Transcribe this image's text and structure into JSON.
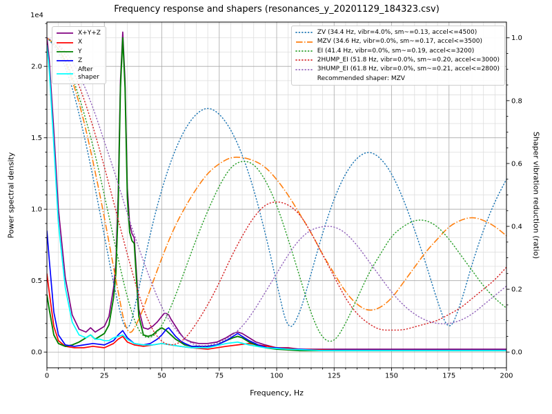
{
  "title": "Frequency response and shapers (resonances_y_20201129_184323.csv)",
  "axes": {
    "x": {
      "label": "Frequency, Hz",
      "range": [
        0,
        200
      ],
      "major_ticks": [
        0,
        25,
        50,
        75,
        100,
        125,
        150,
        175,
        200
      ],
      "minor_step": 5
    },
    "y_left": {
      "label": "Power spectral density",
      "offset_text": "1e4",
      "range_1e4": [
        -0.11,
        2.31
      ],
      "major_ticks": [
        0,
        0.5,
        1.0,
        1.5,
        2.0
      ],
      "minor_step": 0.1
    },
    "y_right": {
      "label": "Shaper vibration reduction (ratio)",
      "range": [
        -0.05,
        1.05
      ],
      "major_ticks": [
        0,
        0.2,
        0.4,
        0.6,
        0.8,
        1.0
      ],
      "minor_step": 0.05
    }
  },
  "legend_psd": {
    "items": [
      {
        "label": "X+Y+Z",
        "color": "#800080",
        "linestyle": "solid"
      },
      {
        "label": "X",
        "color": "#ff0000",
        "linestyle": "solid"
      },
      {
        "label": "Y",
        "color": "#008000",
        "linestyle": "solid"
      },
      {
        "label": "Z",
        "color": "#0000ff",
        "linestyle": "solid"
      },
      {
        "label": "After\nshaper",
        "color": "#00ffff",
        "linestyle": "solid"
      }
    ]
  },
  "legend_shapers": {
    "items": [
      {
        "label": "ZV (34.4 Hz, vibr=4.0%, sm~=0.13, accel<=4500)",
        "color": "#1f77b4",
        "linestyle": "dotted"
      },
      {
        "label": "MZV (34.6 Hz, vibr=0.0%, sm~=0.17, accel<=3500)",
        "color": "#ff7f0e",
        "linestyle": "dashdot"
      },
      {
        "label": "EI (41.4 Hz, vibr=0.0%, sm~=0.19, accel<=3200)",
        "color": "#2ca02c",
        "linestyle": "dotted"
      },
      {
        "label": "2HUMP_EI (51.8 Hz, vibr=0.0%, sm~=0.20, accel<=3000)",
        "color": "#d62728",
        "linestyle": "dotted"
      },
      {
        "label": "3HUMP_EI (61.8 Hz, vibr=0.0%, sm~=0.21, accel<=2800)",
        "color": "#9467bd",
        "linestyle": "dotted"
      }
    ],
    "note": "Recommended shaper: MZV"
  },
  "chart_data": {
    "type": "line",
    "title": "Frequency response and shapers (resonances_y_20201129_184323.csv)",
    "xlabel": "Frequency, Hz",
    "ylabel_left": "Power spectral density",
    "ylabel_right": "Shaper vibration reduction (ratio)",
    "x_range": [
      0,
      200
    ],
    "y_left_units": "1e4 power spectral density",
    "y_left_range_1e4": [
      0,
      2.3
    ],
    "y_right_range": [
      0,
      1.0
    ],
    "grid": "major grey + minor lightgrey, both axes",
    "legend_positions": [
      "upper left",
      "upper right"
    ],
    "recommended_shaper": "MZV",
    "series": [
      {
        "name": "X+Y+Z",
        "axis": "left",
        "color": "#800080",
        "linestyle": "solid",
        "width": 1.7,
        "x": [
          0,
          1,
          3,
          5,
          8,
          11,
          14,
          17,
          19,
          21,
          23,
          25,
          27,
          29,
          30,
          31,
          32,
          33,
          34,
          35,
          36,
          37,
          38,
          39,
          40,
          42,
          44,
          46,
          48,
          50,
          51,
          52,
          53,
          54,
          56,
          58,
          60,
          63,
          66,
          70,
          74,
          78,
          81,
          83,
          85,
          88,
          91,
          95,
          100,
          105,
          110,
          120,
          140,
          170,
          200
        ],
        "y": [
          2.2,
          2.05,
          1.55,
          1.0,
          0.52,
          0.26,
          0.16,
          0.14,
          0.17,
          0.14,
          0.16,
          0.18,
          0.25,
          0.45,
          0.62,
          1.1,
          1.9,
          2.24,
          1.9,
          1.15,
          0.9,
          0.83,
          0.8,
          0.55,
          0.3,
          0.17,
          0.16,
          0.18,
          0.21,
          0.25,
          0.27,
          0.27,
          0.26,
          0.23,
          0.18,
          0.13,
          0.09,
          0.07,
          0.06,
          0.06,
          0.07,
          0.1,
          0.13,
          0.14,
          0.13,
          0.1,
          0.07,
          0.05,
          0.03,
          0.03,
          0.02,
          0.02,
          0.02,
          0.02,
          0.02
        ]
      },
      {
        "name": "X",
        "axis": "left",
        "color": "#ff0000",
        "linestyle": "solid",
        "width": 1.7,
        "x": [
          0,
          1,
          3,
          5,
          8,
          12,
          16,
          20,
          25,
          29,
          31,
          33,
          35,
          38,
          42,
          46,
          50,
          54,
          58,
          63,
          70,
          78,
          83,
          88,
          92,
          96,
          100,
          110,
          130,
          160,
          200
        ],
        "y": [
          0.55,
          0.42,
          0.18,
          0.08,
          0.04,
          0.03,
          0.03,
          0.04,
          0.03,
          0.06,
          0.09,
          0.11,
          0.07,
          0.05,
          0.04,
          0.05,
          0.06,
          0.05,
          0.04,
          0.03,
          0.02,
          0.04,
          0.05,
          0.06,
          0.05,
          0.04,
          0.03,
          0.02,
          0.01,
          0.01,
          0.01
        ]
      },
      {
        "name": "Y",
        "axis": "left",
        "color": "#008000",
        "linestyle": "solid",
        "width": 1.9,
        "x": [
          0,
          1,
          3,
          5,
          8,
          11,
          14,
          17,
          19,
          21,
          23,
          25,
          27,
          29,
          30,
          31,
          32,
          33,
          34,
          35,
          36,
          37,
          38,
          39,
          40,
          42,
          44,
          46,
          48,
          50,
          52,
          54,
          56,
          58,
          60,
          63,
          66,
          70,
          74,
          78,
          81,
          83,
          85,
          88,
          91,
          95,
          100,
          110,
          120,
          140,
          170,
          200
        ],
        "y": [
          0.4,
          0.3,
          0.12,
          0.06,
          0.04,
          0.05,
          0.07,
          0.1,
          0.12,
          0.09,
          0.11,
          0.13,
          0.19,
          0.38,
          0.55,
          1.0,
          1.85,
          2.2,
          1.85,
          1.08,
          0.84,
          0.78,
          0.76,
          0.5,
          0.25,
          0.12,
          0.11,
          0.12,
          0.15,
          0.17,
          0.15,
          0.12,
          0.09,
          0.07,
          0.05,
          0.04,
          0.04,
          0.04,
          0.05,
          0.08,
          0.1,
          0.11,
          0.1,
          0.07,
          0.05,
          0.03,
          0.02,
          0.01,
          0.01,
          0.01,
          0.01,
          0.01
        ]
      },
      {
        "name": "Z",
        "axis": "left",
        "color": "#0000ff",
        "linestyle": "solid",
        "width": 1.7,
        "x": [
          0,
          1,
          3,
          5,
          8,
          12,
          16,
          20,
          25,
          29,
          31,
          33,
          35,
          38,
          42,
          45,
          48,
          50,
          52,
          53,
          54,
          56,
          58,
          60,
          63,
          66,
          70,
          74,
          78,
          81,
          83,
          85,
          88,
          92,
          96,
          100,
          105,
          110,
          120,
          140,
          170,
          200
        ],
        "y": [
          0.85,
          0.65,
          0.28,
          0.12,
          0.05,
          0.04,
          0.05,
          0.06,
          0.05,
          0.08,
          0.12,
          0.15,
          0.1,
          0.06,
          0.05,
          0.06,
          0.09,
          0.12,
          0.16,
          0.17,
          0.15,
          0.11,
          0.08,
          0.06,
          0.04,
          0.04,
          0.04,
          0.05,
          0.08,
          0.11,
          0.13,
          0.11,
          0.08,
          0.05,
          0.03,
          0.03,
          0.02,
          0.02,
          0.01,
          0.01,
          0.01,
          0.01
        ]
      },
      {
        "name": "After shaper",
        "axis": "left",
        "color": "#00ffff",
        "linestyle": "solid",
        "width": 1.7,
        "x": [
          0,
          1,
          3,
          5,
          8,
          11,
          14,
          17,
          19,
          21,
          23,
          25,
          27,
          29,
          31,
          33,
          35,
          38,
          42,
          46,
          50,
          54,
          58,
          63,
          70,
          78,
          83,
          88,
          95,
          105,
          120,
          150,
          200
        ],
        "y": [
          2.15,
          1.98,
          1.45,
          0.9,
          0.45,
          0.21,
          0.12,
          0.1,
          0.12,
          0.09,
          0.09,
          0.08,
          0.08,
          0.1,
          0.11,
          0.12,
          0.09,
          0.06,
          0.05,
          0.05,
          0.06,
          0.05,
          0.04,
          0.03,
          0.03,
          0.06,
          0.07,
          0.05,
          0.03,
          0.02,
          0.01,
          0.01,
          0.01
        ]
      },
      {
        "name": "ZV",
        "axis": "right",
        "color": "#1f77b4",
        "linestyle": "dotted",
        "width": 1.5,
        "x_start": 0,
        "x_step": 5,
        "y": [
          1.0,
          0.96,
          0.87,
          0.73,
          0.56,
          0.37,
          0.18,
          0.04,
          0.2,
          0.38,
          0.52,
          0.63,
          0.71,
          0.76,
          0.78,
          0.76,
          0.71,
          0.63,
          0.52,
          0.38,
          0.22,
          0.06,
          0.12,
          0.25,
          0.38,
          0.49,
          0.57,
          0.62,
          0.64,
          0.62,
          0.57,
          0.49,
          0.39,
          0.28,
          0.16,
          0.06,
          0.15,
          0.28,
          0.39,
          0.48,
          0.55
        ]
      },
      {
        "name": "MZV",
        "axis": "right",
        "color": "#ff7f0e",
        "linestyle": "dashdot",
        "width": 1.6,
        "x_start": 0,
        "x_step": 5,
        "y": [
          1.0,
          0.97,
          0.89,
          0.77,
          0.61,
          0.43,
          0.23,
          0.04,
          0.1,
          0.2,
          0.3,
          0.39,
          0.46,
          0.52,
          0.57,
          0.6,
          0.62,
          0.62,
          0.61,
          0.59,
          0.55,
          0.5,
          0.44,
          0.38,
          0.31,
          0.25,
          0.19,
          0.15,
          0.13,
          0.14,
          0.17,
          0.22,
          0.27,
          0.32,
          0.36,
          0.4,
          0.42,
          0.43,
          0.42,
          0.4,
          0.37
        ]
      },
      {
        "name": "EI",
        "axis": "right",
        "color": "#2ca02c",
        "linestyle": "dotted",
        "width": 1.5,
        "x_start": 0,
        "x_step": 5,
        "y": [
          1.0,
          0.97,
          0.9,
          0.79,
          0.66,
          0.5,
          0.33,
          0.17,
          0.06,
          0.04,
          0.08,
          0.16,
          0.26,
          0.36,
          0.45,
          0.53,
          0.59,
          0.61,
          0.6,
          0.55,
          0.47,
          0.36,
          0.24,
          0.12,
          0.04,
          0.03,
          0.09,
          0.17,
          0.25,
          0.31,
          0.37,
          0.4,
          0.42,
          0.42,
          0.4,
          0.36,
          0.31,
          0.26,
          0.21,
          0.17,
          0.14
        ]
      },
      {
        "name": "2HUMP_EI",
        "axis": "right",
        "color": "#d62728",
        "linestyle": "dotted",
        "width": 1.5,
        "x_start": 0,
        "x_step": 5,
        "y": [
          1.0,
          0.98,
          0.92,
          0.83,
          0.72,
          0.59,
          0.45,
          0.31,
          0.18,
          0.08,
          0.03,
          0.02,
          0.04,
          0.09,
          0.15,
          0.22,
          0.3,
          0.37,
          0.43,
          0.47,
          0.48,
          0.47,
          0.44,
          0.38,
          0.31,
          0.24,
          0.17,
          0.12,
          0.09,
          0.07,
          0.07,
          0.07,
          0.08,
          0.09,
          0.1,
          0.12,
          0.14,
          0.17,
          0.2,
          0.23,
          0.27
        ]
      },
      {
        "name": "3HUMP_EI",
        "axis": "right",
        "color": "#9467bd",
        "linestyle": "dotted",
        "width": 1.5,
        "x_start": 0,
        "x_step": 5,
        "y": [
          1.0,
          0.98,
          0.94,
          0.87,
          0.78,
          0.67,
          0.56,
          0.44,
          0.33,
          0.23,
          0.14,
          0.08,
          0.04,
          0.02,
          0.02,
          0.03,
          0.05,
          0.08,
          0.13,
          0.19,
          0.25,
          0.31,
          0.36,
          0.39,
          0.4,
          0.4,
          0.38,
          0.34,
          0.29,
          0.24,
          0.19,
          0.15,
          0.12,
          0.1,
          0.09,
          0.09,
          0.1,
          0.12,
          0.15,
          0.18,
          0.21
        ]
      }
    ]
  }
}
